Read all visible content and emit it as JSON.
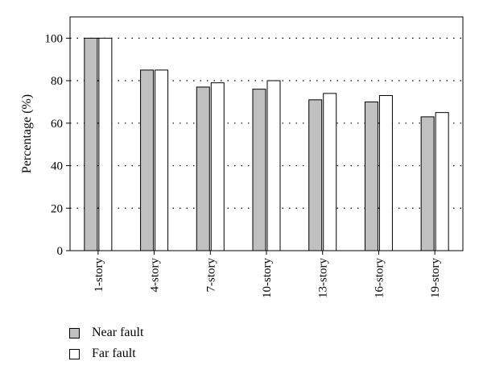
{
  "chart_data": {
    "type": "bar",
    "title": "",
    "xlabel": "",
    "ylabel": "Percentage (%)",
    "ylim": [
      0,
      110
    ],
    "yticks": [
      0,
      20,
      40,
      60,
      80,
      100
    ],
    "grid": "horizontal dotted",
    "legend_position": "bottom-left",
    "categories": [
      "1-story",
      "4-story",
      "7-story",
      "10-story",
      "13-story",
      "16-story",
      "19-story"
    ],
    "series": [
      {
        "name": "Near fault",
        "color": "#c0c0c0",
        "values": [
          100,
          85,
          77,
          76,
          71,
          70,
          63
        ]
      },
      {
        "name": "Far fault",
        "color": "#ffffff",
        "values": [
          100,
          85,
          79,
          80,
          74,
          73,
          65
        ]
      }
    ]
  }
}
